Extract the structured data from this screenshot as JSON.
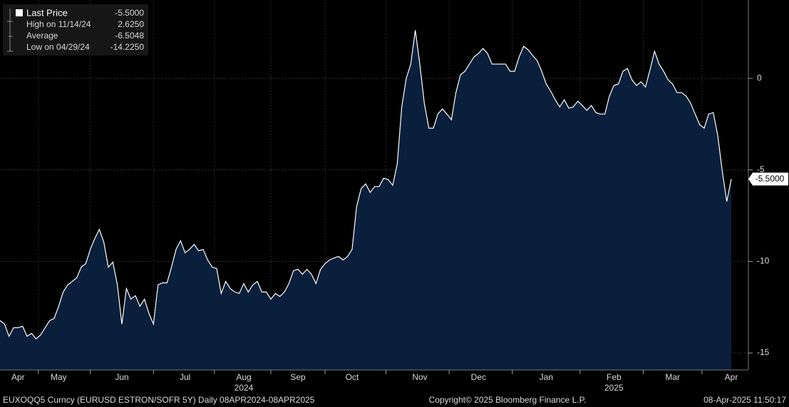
{
  "chart_data": {
    "type": "area",
    "color": "#0a1f3c",
    "line_color": "#ffffff",
    "categories": [
      null,
      null,
      null,
      null,
      "Apr",
      null,
      null,
      null,
      null,
      null,
      null,
      null,
      null,
      "May",
      null,
      null,
      null,
      null,
      null,
      null,
      null,
      null,
      null,
      null,
      null,
      null,
      null,
      "Jun",
      null,
      null,
      null,
      null,
      null,
      null,
      null,
      null,
      null,
      null,
      null,
      null,
      null,
      "Jul",
      null,
      null,
      null,
      null,
      null,
      null,
      null,
      null,
      null,
      null,
      null,
      null,
      "Aug",
      null,
      null,
      null,
      null,
      null,
      null,
      null,
      null,
      null,
      null,
      null,
      "Sep",
      null,
      null,
      null,
      null,
      null,
      null,
      null,
      null,
      null,
      null,
      null,
      "Oct",
      null,
      null,
      null,
      null,
      null,
      null,
      null,
      null,
      null,
      null,
      null,
      null,
      null,
      null,
      "Nov",
      null,
      null,
      null,
      null,
      null,
      null,
      null,
      null,
      null,
      null,
      null,
      null,
      "Dec",
      null,
      null,
      null,
      null,
      null,
      null,
      null,
      null,
      null,
      null,
      null,
      null,
      null,
      null,
      "Jan",
      null,
      null,
      null,
      null,
      null,
      null,
      null,
      null,
      null,
      null,
      null,
      null,
      null,
      null,
      "Feb",
      null,
      null,
      null,
      null,
      null,
      null,
      null,
      null,
      null,
      null,
      null,
      null,
      "Mar",
      null,
      null,
      null,
      null,
      null,
      null,
      null,
      null,
      null,
      null,
      null,
      null,
      "Apr"
    ],
    "values": [
      -13.23,
      -13.42,
      -14.09,
      -13.62,
      -13.62,
      -13.54,
      -14.09,
      -13.93,
      -14.23,
      -14.01,
      -13.62,
      -13.23,
      -13.11,
      -12.45,
      -11.67,
      -11.28,
      -11.09,
      -10.89,
      -10.31,
      -10.12,
      -9.34,
      -8.75,
      -8.25,
      -8.95,
      -10.31,
      -10.04,
      -11.28,
      -13.42,
      -11.48,
      -12.06,
      -11.87,
      -12.45,
      -12.06,
      -12.84,
      -13.42,
      -11.28,
      -11.17,
      -11.17,
      -10.31,
      -9.34,
      -8.87,
      -9.53,
      -9.34,
      -9.07,
      -9.42,
      -9.34,
      -9.92,
      -10.31,
      -10.39,
      -11.75,
      -11.09,
      -11.48,
      -11.67,
      -11.75,
      -11.21,
      -11.67,
      -11.28,
      -11.09,
      -11.67,
      -11.67,
      -12.06,
      -11.75,
      -11.91,
      -11.67,
      -11.21,
      -10.51,
      -10.43,
      -10.7,
      -10.43,
      -10.7,
      -11.21,
      -10.43,
      -10.12,
      -9.92,
      -9.81,
      -9.73,
      -9.92,
      -9.73,
      -9.34,
      -7.0,
      -6.03,
      -5.76,
      -6.23,
      -5.91,
      -5.91,
      -5.45,
      -5.53,
      -5.84,
      -4.67,
      -1.56,
      0,
      0.78,
      2.63,
      0.78,
      -1.36,
      -2.72,
      -2.72,
      -1.95,
      -1.67,
      -1.95,
      -2.26,
      -0.78,
      0.19,
      0.39,
      0.78,
      1.17,
      1.36,
      1.63,
      1.36,
      0.78,
      0.78,
      0.78,
      0.78,
      0.39,
      0.39,
      1.17,
      1.75,
      1.56,
      1.25,
      0.97,
      0.39,
      -0.31,
      -0.7,
      -1.17,
      -1.56,
      -1.17,
      -1.63,
      -1.56,
      -1.25,
      -1.48,
      -1.75,
      -1.48,
      -1.87,
      -1.95,
      -1.95,
      -0.97,
      -0.39,
      -0.31,
      0.39,
      0.54,
      -0.08,
      -0.39,
      -0.19,
      -0.47,
      0.47,
      1.48,
      0.78,
      0.39,
      -0.08,
      -0.31,
      -0.78,
      -0.78,
      -0.97,
      -1.36,
      -1.95,
      -2.53,
      -2.72,
      -1.95,
      -1.87,
      -3.11,
      -5.06,
      -6.73,
      -5.5
    ],
    "year_labels": [
      "2024",
      "2025"
    ],
    "ylim": [
      -15.93,
      4.28
    ],
    "yticks": [
      0,
      -5,
      -10,
      -15
    ],
    "grid": true,
    "legend": [
      {
        "name": "Last Price",
        "label": "-5.5000"
      },
      {
        "name": "High on 11/14/24",
        "label": "2.6250"
      },
      {
        "name": "Average",
        "label": "-6.5048"
      },
      {
        "name": "Low on 04/29/24",
        "label": "-14.2250"
      }
    ],
    "last_price_label": "-5.5000",
    "footer": {
      "left": "EUXOQQ5 Curncy (EURUSD  ESTRON/SOFR 5Y)  Daily 08APR2024-08APR2025",
      "center": "Copyright© 2025 Bloomberg Finance L.P.",
      "right": "08-Apr-2025 11:50:17"
    }
  }
}
